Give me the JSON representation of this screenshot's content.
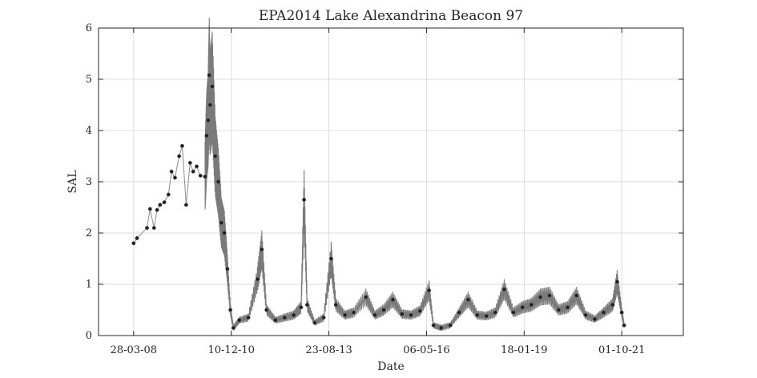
{
  "chart_data": {
    "type": "line",
    "title": "EPA2014 Lake Alexandrina Beacon 97",
    "xlabel": "Date",
    "ylabel": "SAL",
    "xlim": [
      "2007-04-08",
      "2023-06-15"
    ],
    "ylim": [
      0,
      6
    ],
    "grid": true,
    "x_ticks": [
      {
        "date": "2008-03-28",
        "label": "28-03-08"
      },
      {
        "date": "2010-12-10",
        "label": "10-12-10"
      },
      {
        "date": "2013-08-23",
        "label": "23-08-13"
      },
      {
        "date": "2016-05-06",
        "label": "06-05-16"
      },
      {
        "date": "2019-01-18",
        "label": "18-01-19"
      },
      {
        "date": "2021-10-01",
        "label": "01-10-21"
      }
    ],
    "y_ticks": [
      0,
      1,
      2,
      3,
      4,
      5,
      6
    ],
    "series": [
      {
        "marker": "dot",
        "color": "#202020",
        "line_color": "#8c8c8c",
        "points": [
          [
            "2008-03-28",
            1.8
          ],
          [
            "2008-05-01",
            1.9
          ],
          [
            "2008-08-10",
            2.1
          ],
          [
            "2008-09-10",
            2.47
          ],
          [
            "2008-10-20",
            2.1
          ],
          [
            "2008-11-20",
            2.45
          ],
          [
            "2008-12-20",
            2.55
          ],
          [
            "2009-02-01",
            2.6
          ],
          [
            "2009-03-15",
            2.75
          ],
          [
            "2009-04-15",
            3.2
          ],
          [
            "2009-05-20",
            3.08
          ],
          [
            "2009-07-01",
            3.5
          ],
          [
            "2009-08-01",
            3.7
          ],
          [
            "2009-09-10",
            2.55
          ],
          [
            "2009-10-20",
            3.37
          ],
          [
            "2009-11-20",
            3.2
          ],
          [
            "2009-12-25",
            3.3
          ],
          [
            "2010-02-01",
            3.12
          ],
          [
            "2010-03-20",
            3.1
          ],
          [
            "2010-04-05",
            3.9
          ],
          [
            "2010-04-20",
            4.2
          ],
          [
            "2010-05-01",
            5.08
          ],
          [
            "2010-05-10",
            4.5
          ],
          [
            "2010-06-01",
            4.86
          ],
          [
            "2010-07-01",
            3.5
          ],
          [
            "2010-08-01",
            3.0
          ],
          [
            "2010-09-01",
            2.2
          ],
          [
            "2010-10-01",
            2.0
          ],
          [
            "2010-11-01",
            1.3
          ],
          [
            "2010-12-01",
            0.5
          ],
          [
            "2011-01-01",
            0.15
          ],
          [
            "2011-03-01",
            0.3
          ],
          [
            "2011-06-01",
            0.35
          ],
          [
            "2011-09-01",
            1.1
          ],
          [
            "2011-10-15",
            1.68
          ],
          [
            "2011-12-01",
            0.5
          ],
          [
            "2012-03-01",
            0.3
          ],
          [
            "2012-06-01",
            0.35
          ],
          [
            "2012-09-01",
            0.4
          ],
          [
            "2012-11-15",
            0.55
          ],
          [
            "2012-12-15",
            2.65
          ],
          [
            "2013-01-15",
            0.6
          ],
          [
            "2013-04-01",
            0.25
          ],
          [
            "2013-07-01",
            0.35
          ],
          [
            "2013-09-15",
            1.5
          ],
          [
            "2013-11-01",
            0.6
          ],
          [
            "2014-02-01",
            0.4
          ],
          [
            "2014-05-01",
            0.45
          ],
          [
            "2014-09-01",
            0.75
          ],
          [
            "2014-12-01",
            0.4
          ],
          [
            "2015-03-01",
            0.5
          ],
          [
            "2015-06-01",
            0.7
          ],
          [
            "2015-09-01",
            0.42
          ],
          [
            "2015-12-01",
            0.4
          ],
          [
            "2016-03-01",
            0.48
          ],
          [
            "2016-06-01",
            0.88
          ],
          [
            "2016-07-15",
            0.2
          ],
          [
            "2016-10-01",
            0.15
          ],
          [
            "2017-01-01",
            0.2
          ],
          [
            "2017-04-01",
            0.45
          ],
          [
            "2017-07-01",
            0.7
          ],
          [
            "2017-10-01",
            0.4
          ],
          [
            "2018-01-01",
            0.38
          ],
          [
            "2018-04-01",
            0.45
          ],
          [
            "2018-07-01",
            0.9
          ],
          [
            "2018-10-01",
            0.45
          ],
          [
            "2019-01-01",
            0.55
          ],
          [
            "2019-04-01",
            0.6
          ],
          [
            "2019-07-01",
            0.75
          ],
          [
            "2019-10-01",
            0.78
          ],
          [
            "2020-01-01",
            0.5
          ],
          [
            "2020-04-01",
            0.55
          ],
          [
            "2020-07-01",
            0.78
          ],
          [
            "2020-10-01",
            0.4
          ],
          [
            "2021-01-01",
            0.32
          ],
          [
            "2021-04-01",
            0.45
          ],
          [
            "2021-07-01",
            0.6
          ],
          [
            "2021-08-15",
            1.05
          ],
          [
            "2021-10-01",
            0.45
          ],
          [
            "2021-10-25",
            0.2
          ]
        ]
      }
    ]
  }
}
